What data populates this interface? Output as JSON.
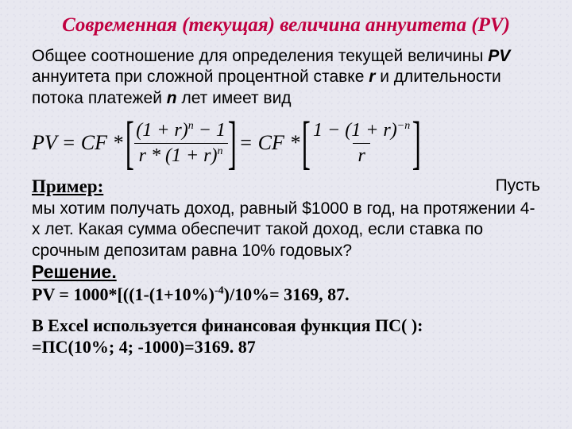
{
  "title": "Современная (текущая) величина аннуитета (PV)",
  "intro_1": "Общее соотношение для определения текущей величины ",
  "intro_pv": "PV",
  "intro_2": " аннуитета при сложной процентной ставке ",
  "intro_r": "r",
  "intro_3": " и длительности потока платежей ",
  "intro_n": "n",
  "intro_4": " лет имеет вид",
  "formula": {
    "lhs": "PV",
    "eq1": " = CF *",
    "num1_a": "(1 + r)",
    "num1_exp": "n",
    "num1_b": " − 1",
    "den1_a": "r * (1 + r)",
    "den1_exp": "n",
    "eq2": " = CF *",
    "num2_a": "1 − (1 + r)",
    "num2_exp": "−n",
    "den2": "r"
  },
  "primer_label": "Пример:",
  "pust": "Пусть",
  "example_text": "мы хотим получать доход, равный $1000 в год, на протяжении 4-х лет. Какая сумма обеспечит такой доход, если ставка по срочным депозитам равна 10% годовых?",
  "resh_label": "Решение.",
  "calc": "PV = 1000*[((1-(1+10%)",
  "calc_exp": "-4",
  "calc_tail": ")/10%= 3169, 87.",
  "excel_1": "В Excel используется финансовая функция ПС( ):",
  "excel_2": "=ПС(10%; 4; -1000)=3169. 87"
}
